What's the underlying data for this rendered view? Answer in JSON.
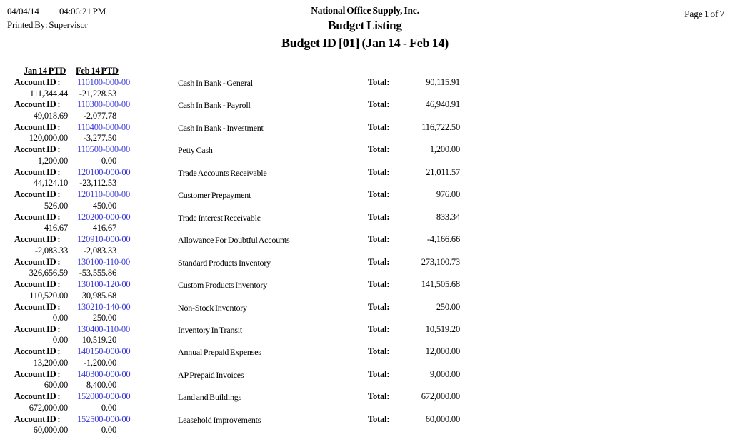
{
  "colors": {
    "account_id_blue": "#3c3cdc",
    "rule_gray": "#54545e",
    "background": "#ffffff"
  },
  "header": {
    "date": "04/04/14",
    "time": "04:06:21 PM",
    "printed_by": "Printed By: Supervisor",
    "company": "National Office Supply, Inc.",
    "report_title": "Budget Listing",
    "report_subtitle": "Budget ID [01] (Jan 14 - Feb 14)",
    "page_indicator": "Page 1 of 7"
  },
  "columns": {
    "jan_header": "Jan 14 PTD",
    "feb_header": "Feb 14 PTD",
    "account_id_label": "Account ID :",
    "total_label": "Total:"
  },
  "rows": [
    {
      "account_id": "110100-000-00",
      "description": "Cash In Bank - General",
      "jan_ptd": "111,344.44",
      "feb_ptd": "-21,228.53",
      "total": "90,115.91"
    },
    {
      "account_id": "110300-000-00",
      "description": "Cash In Bank - Payroll",
      "jan_ptd": "49,018.69",
      "feb_ptd": "-2,077.78",
      "total": "46,940.91"
    },
    {
      "account_id": "110400-000-00",
      "description": "Cash In Bank - Investment",
      "jan_ptd": "120,000.00",
      "feb_ptd": "-3,277.50",
      "total": "116,722.50"
    },
    {
      "account_id": "110500-000-00",
      "description": "Petty Cash",
      "jan_ptd": "1,200.00",
      "feb_ptd": "0.00",
      "total": "1,200.00"
    },
    {
      "account_id": "120100-000-00",
      "description": "Trade Accounts Receivable",
      "jan_ptd": "44,124.10",
      "feb_ptd": "-23,112.53",
      "total": "21,011.57"
    },
    {
      "account_id": "120110-000-00",
      "description": "Customer Prepayment",
      "jan_ptd": "526.00",
      "feb_ptd": "450.00",
      "total": "976.00"
    },
    {
      "account_id": "120200-000-00",
      "description": "Trade Interest Receivable",
      "jan_ptd": "416.67",
      "feb_ptd": "416.67",
      "total": "833.34"
    },
    {
      "account_id": "120910-000-00",
      "description": "Allowance For Doubtful Accounts",
      "jan_ptd": "-2,083.33",
      "feb_ptd": "-2,083.33",
      "total": "-4,166.66"
    },
    {
      "account_id": "130100-110-00",
      "description": "Standard Products Inventory",
      "jan_ptd": "326,656.59",
      "feb_ptd": "-53,555.86",
      "total": "273,100.73"
    },
    {
      "account_id": "130100-120-00",
      "description": "Custom Products Inventory",
      "jan_ptd": "110,520.00",
      "feb_ptd": "30,985.68",
      "total": "141,505.68"
    },
    {
      "account_id": "130210-140-00",
      "description": "Non-Stock Inventory",
      "jan_ptd": "0.00",
      "feb_ptd": "250.00",
      "total": "250.00"
    },
    {
      "account_id": "130400-110-00",
      "description": "Inventory In Transit",
      "jan_ptd": "0.00",
      "feb_ptd": "10,519.20",
      "total": "10,519.20"
    },
    {
      "account_id": "140150-000-00",
      "description": "Annual Prepaid Expenses",
      "jan_ptd": "13,200.00",
      "feb_ptd": "-1,200.00",
      "total": "12,000.00"
    },
    {
      "account_id": "140300-000-00",
      "description": "AP Prepaid Invoices",
      "jan_ptd": "600.00",
      "feb_ptd": "8,400.00",
      "total": "9,000.00"
    },
    {
      "account_id": "152000-000-00",
      "description": "Land and Buildings",
      "jan_ptd": "672,000.00",
      "feb_ptd": "0.00",
      "total": "672,000.00"
    },
    {
      "account_id": "152500-000-00",
      "description": "Leasehold Improvements",
      "jan_ptd": "60,000.00",
      "feb_ptd": "0.00",
      "total": "60,000.00"
    }
  ]
}
